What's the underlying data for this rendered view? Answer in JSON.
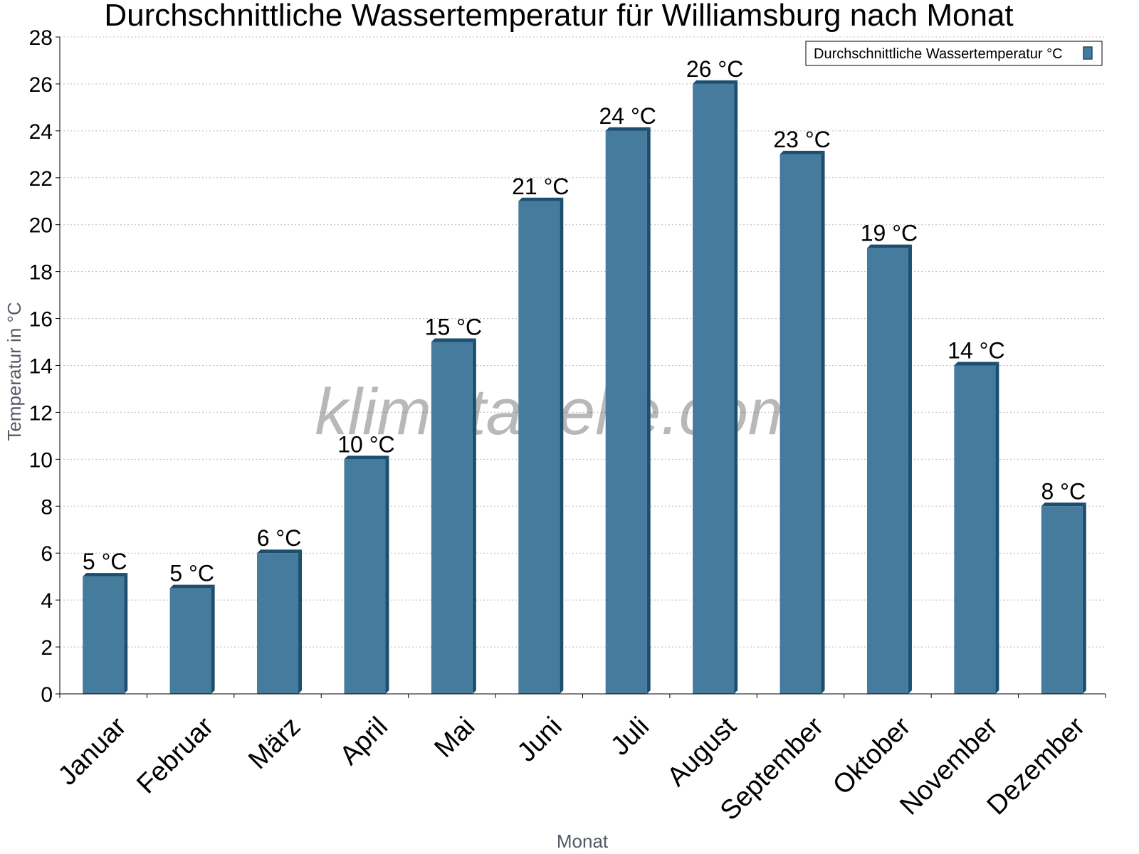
{
  "chart_data": {
    "type": "bar",
    "title": "Durchschnittliche Wassertemperatur für Williamsburg nach Monat",
    "xlabel": "Monat",
    "ylabel": "Temperatur in °C",
    "ylim": [
      0,
      28
    ],
    "yticks": [
      0,
      2,
      4,
      6,
      8,
      10,
      12,
      14,
      16,
      18,
      20,
      22,
      24,
      26,
      28
    ],
    "grid": true,
    "legend_position": "top-right",
    "categories": [
      "Januar",
      "Februar",
      "März",
      "April",
      "Mai",
      "Juni",
      "Juli",
      "August",
      "September",
      "Oktober",
      "November",
      "Dezember"
    ],
    "series": [
      {
        "name": "Durchschnittliche Wassertemperatur °C",
        "values": [
          5,
          4.5,
          6,
          10,
          15,
          21,
          24,
          26,
          23,
          19,
          14,
          8
        ],
        "labels": [
          "5 °C",
          "5 °C",
          "6 °C",
          "10 °C",
          "15 °C",
          "21 °C",
          "24 °C",
          "26 °C",
          "23 °C",
          "19 °C",
          "14 °C",
          "8 °C"
        ],
        "color": "#457b9d",
        "edge_color": "#1d4e6e"
      }
    ]
  },
  "watermark": "klimatabelle.com"
}
